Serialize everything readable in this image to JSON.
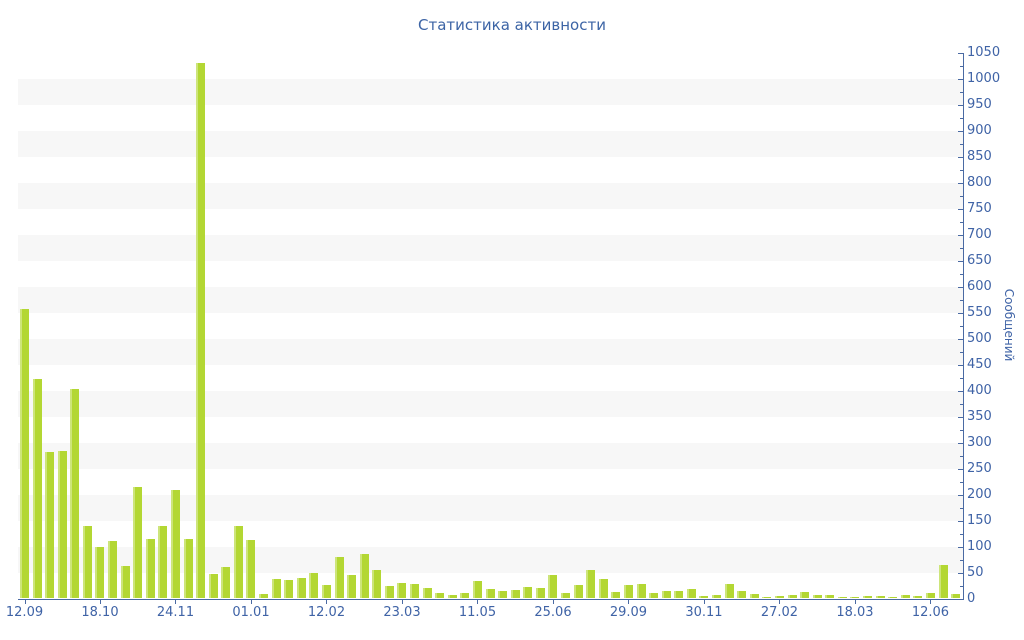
{
  "chart_data": {
    "type": "bar",
    "title": "Статистика активности",
    "ylabel": "Сообщений",
    "xlabel": "",
    "ylim": [
      0,
      1050
    ],
    "y_tick_step": 50,
    "y_minor_tick_step": 25,
    "grid": "alternating horizontal gray bands every 50 units",
    "legend_position": "none",
    "x_tick_labels": [
      "12.09",
      "18.10",
      "24.11",
      "01.01",
      "12.02",
      "23.03",
      "11.05",
      "25.06",
      "29.09",
      "30.11",
      "27.02",
      "18.03",
      "12.06"
    ],
    "x_tick_every": 6,
    "values": [
      557,
      422,
      281,
      283,
      402,
      140,
      99,
      111,
      62,
      215,
      114,
      139,
      209,
      115,
      1030,
      48,
      60,
      139,
      113,
      8,
      37,
      35,
      40,
      49,
      26,
      80,
      45,
      85,
      55,
      24,
      29,
      27,
      20,
      10,
      6,
      11,
      34,
      18,
      14,
      16,
      22,
      20,
      45,
      10,
      26,
      55,
      38,
      13,
      26,
      28,
      10,
      15,
      14,
      19,
      4,
      6,
      28,
      15,
      9,
      2,
      5,
      7,
      13,
      6,
      6,
      3,
      2,
      4,
      4,
      3,
      7,
      4,
      10,
      65,
      8
    ],
    "colors": {
      "bar": "#b3d733",
      "bar_highlight": "#d9ec8e",
      "axis": "#4a6aa3",
      "text": "#3f63a6",
      "band": "#f7f7f7",
      "background": "#ffffff"
    }
  }
}
